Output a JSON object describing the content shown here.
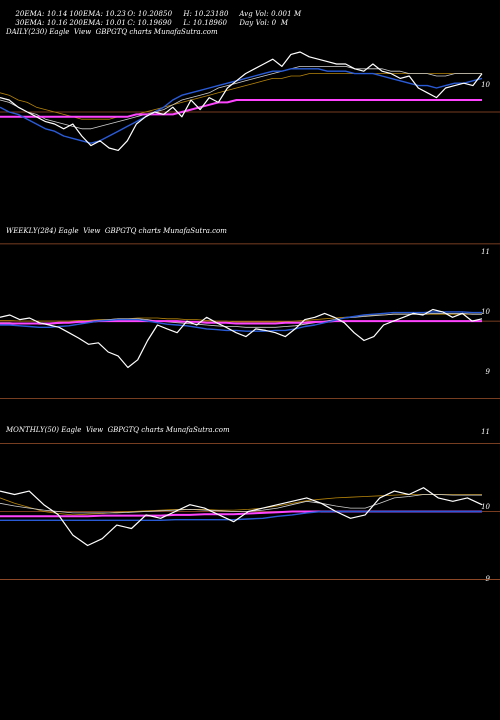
{
  "header": {
    "row1": [
      "20EMA: 10.14",
      "100EMA: 10.23",
      "O: 10.20850",
      "H: 10.23180",
      "Avg Vol: 0.001 M"
    ],
    "row2": [
      "30EMA: 10.16",
      "200EMA: 10.01",
      "C: 10.19690",
      "L: 10.18960",
      "Day Vol: 0  M"
    ]
  },
  "colors": {
    "background": "#000000",
    "price": "#ffffff",
    "ema_fast": "#2a5bd7",
    "ema_mid": "#cfcfcf",
    "ema_slow": "#b8860b",
    "ema_long": "#ff44ff",
    "grid": "#a0522d"
  },
  "chart_data": [
    {
      "type": "line",
      "title": "DAILY(230) Eagle  View  GBPGTQ charts MunafaSutra.com",
      "yticks": [
        "10"
      ],
      "series": [
        {
          "key": "price",
          "values": [
            10.06,
            10.05,
            10.02,
            10.0,
            9.98,
            9.96,
            9.95,
            9.93,
            9.95,
            9.9,
            9.86,
            9.88,
            9.85,
            9.84,
            9.88,
            9.95,
            9.98,
            10.0,
            9.99,
            10.02,
            9.98,
            10.05,
            10.01,
            10.06,
            10.04,
            10.1,
            10.13,
            10.16,
            10.18,
            10.2,
            10.22,
            10.19,
            10.24,
            10.25,
            10.23,
            10.22,
            10.21,
            10.2,
            10.2,
            10.18,
            10.17,
            10.2,
            10.17,
            10.16,
            10.14,
            10.15,
            10.1,
            10.08,
            10.06,
            10.1,
            10.11,
            10.12,
            10.11,
            10.16
          ]
        },
        {
          "key": "ema_fast",
          "values": [
            10.02,
            10.0,
            9.99,
            9.97,
            9.95,
            9.93,
            9.92,
            9.9,
            9.89,
            9.88,
            9.87,
            9.88,
            9.9,
            9.92,
            9.94,
            9.96,
            9.98,
            10.0,
            10.02,
            10.05,
            10.07,
            10.08,
            10.09,
            10.1,
            10.11,
            10.12,
            10.13,
            10.14,
            10.15,
            10.16,
            10.17,
            10.17,
            10.18,
            10.18,
            10.18,
            10.18,
            10.17,
            10.17,
            10.17,
            10.16,
            10.16,
            10.16,
            10.15,
            10.14,
            10.13,
            10.12,
            10.11,
            10.11,
            10.1,
            10.11,
            10.12,
            10.12,
            10.13,
            10.14
          ]
        },
        {
          "key": "ema_mid",
          "values": [
            10.05,
            10.04,
            10.02,
            10.0,
            9.99,
            9.97,
            9.96,
            9.95,
            9.94,
            9.93,
            9.93,
            9.94,
            9.95,
            9.96,
            9.97,
            9.98,
            9.99,
            10.0,
            10.01,
            10.03,
            10.05,
            10.06,
            10.07,
            10.08,
            10.1,
            10.11,
            10.12,
            10.13,
            10.14,
            10.15,
            10.16,
            10.17,
            10.18,
            10.19,
            10.19,
            10.19,
            10.19,
            10.19,
            10.19,
            10.18,
            10.18,
            10.18,
            10.18,
            10.17,
            10.17,
            10.16,
            10.16,
            10.16,
            10.15,
            10.15,
            10.16,
            10.16,
            10.16,
            10.16
          ]
        },
        {
          "key": "ema_slow",
          "values": [
            10.08,
            10.07,
            10.05,
            10.04,
            10.02,
            10.01,
            10.0,
            9.99,
            9.98,
            9.97,
            9.97,
            9.97,
            9.97,
            9.98,
            9.98,
            9.99,
            10.0,
            10.01,
            10.02,
            10.03,
            10.04,
            10.05,
            10.06,
            10.07,
            10.08,
            10.09,
            10.1,
            10.11,
            10.12,
            10.13,
            10.14,
            10.14,
            10.15,
            10.15,
            10.16,
            10.16,
            10.16,
            10.16,
            10.16,
            10.16,
            10.16,
            10.16,
            10.16,
            10.16,
            10.16,
            10.16,
            10.16,
            10.16,
            10.16,
            10.16,
            10.16,
            10.16,
            10.16,
            10.16
          ]
        },
        {
          "key": "ema_long",
          "values": [
            9.98,
            9.98,
            9.98,
            9.98,
            9.98,
            9.98,
            9.98,
            9.98,
            9.98,
            9.98,
            9.98,
            9.98,
            9.98,
            9.98,
            9.98,
            9.99,
            9.99,
            9.99,
            9.99,
            9.99,
            10.0,
            10.01,
            10.02,
            10.03,
            10.04,
            10.04,
            10.05,
            10.05,
            10.05,
            10.05,
            10.05,
            10.05,
            10.05,
            10.05,
            10.05,
            10.05,
            10.05,
            10.05,
            10.05,
            10.05,
            10.05,
            10.05,
            10.05,
            10.05,
            10.05,
            10.05,
            10.05,
            10.05,
            10.05,
            10.05,
            10.05,
            10.05,
            10.05,
            10.05
          ]
        }
      ]
    },
    {
      "type": "line",
      "title": "WEEKLY(284) Eagle  View  GBPGTQ charts MunafaSutra.com",
      "yticks": [
        "11",
        "10",
        "9"
      ],
      "series": [
        {
          "key": "price",
          "values": [
            10.05,
            10.08,
            10.02,
            10.04,
            9.98,
            9.95,
            9.92,
            9.85,
            9.78,
            9.7,
            9.72,
            9.6,
            9.55,
            9.4,
            9.5,
            9.75,
            9.95,
            9.9,
            9.85,
            10.0,
            9.95,
            10.05,
            9.98,
            9.92,
            9.85,
            9.8,
            9.9,
            9.88,
            9.85,
            9.8,
            9.9,
            10.02,
            10.05,
            10.1,
            10.05,
            9.98,
            9.85,
            9.75,
            9.8,
            9.95,
            10.0,
            10.05,
            10.1,
            10.08,
            10.15,
            10.12,
            10.05,
            10.1,
            10.0,
            10.03
          ]
        },
        {
          "key": "ema_fast",
          "values": [
            9.95,
            9.95,
            9.94,
            9.93,
            9.92,
            9.92,
            9.93,
            9.94,
            9.96,
            9.98,
            10.0,
            10.01,
            10.02,
            10.02,
            10.02,
            10.0,
            9.98,
            9.96,
            9.95,
            9.94,
            9.92,
            9.9,
            9.89,
            9.88,
            9.88,
            9.87,
            9.87,
            9.87,
            9.88,
            9.88,
            9.9,
            9.93,
            9.95,
            9.98,
            10.01,
            10.04,
            10.06,
            10.08,
            10.09,
            10.1,
            10.11,
            10.11,
            10.11,
            10.11,
            10.12,
            10.12,
            10.12,
            10.12,
            10.11,
            10.11
          ]
        },
        {
          "key": "ema_mid",
          "values": [
            9.98,
            9.98,
            9.97,
            9.97,
            9.96,
            9.96,
            9.97,
            9.98,
            9.99,
            10.0,
            10.01,
            10.02,
            10.03,
            10.03,
            10.03,
            10.02,
            10.0,
            9.99,
            9.98,
            9.97,
            9.96,
            9.95,
            9.94,
            9.93,
            9.93,
            9.92,
            9.92,
            9.92,
            9.92,
            9.93,
            9.94,
            9.96,
            9.98,
            10.0,
            10.02,
            10.04,
            10.05,
            10.06,
            10.07,
            10.08,
            10.09,
            10.09,
            10.09,
            10.09,
            10.1,
            10.1,
            10.1,
            10.1,
            10.09,
            10.09
          ]
        },
        {
          "key": "ema_slow",
          "values": [
            10.01,
            10.01,
            10.0,
            10.0,
            10.0,
            10.0,
            10.0,
            10.0,
            10.01,
            10.01,
            10.02,
            10.02,
            10.03,
            10.03,
            10.04,
            10.04,
            10.04,
            10.03,
            10.03,
            10.02,
            10.02,
            10.01,
            10.0,
            10.0,
            9.99,
            9.99,
            9.99,
            9.99,
            9.99,
            9.99,
            10.0,
            10.01,
            10.02,
            10.03,
            10.04,
            10.05,
            10.06,
            10.07,
            10.08,
            10.08,
            10.09,
            10.09,
            10.09,
            10.09,
            10.09,
            10.09,
            10.09,
            10.09,
            10.09,
            10.09
          ]
        },
        {
          "key": "ema_long",
          "values": [
            9.97,
            9.97,
            9.97,
            9.97,
            9.97,
            9.97,
            9.98,
            9.98,
            9.99,
            9.99,
            10.0,
            10.0,
            10.0,
            10.0,
            10.0,
            10.0,
            10.0,
            10.0,
            10.0,
            9.99,
            9.99,
            9.98,
            9.98,
            9.98,
            9.97,
            9.97,
            9.97,
            9.97,
            9.97,
            9.98,
            9.98,
            9.98,
            9.99,
            9.99,
            10.0,
            10.0,
            10.0,
            10.0,
            10.0,
            10.0,
            10.0,
            10.0,
            10.0,
            10.0,
            10.0,
            10.0,
            10.0,
            10.0,
            10.0,
            10.0
          ]
        }
      ]
    },
    {
      "type": "line",
      "title": "MONTHLY(50) Eagle  View  GBPGTQ charts MunafaSutra.com",
      "yticks": [
        "11",
        "10",
        "9"
      ],
      "series": [
        {
          "key": "price",
          "values": [
            10.3,
            10.25,
            10.3,
            10.1,
            9.95,
            9.65,
            9.5,
            9.6,
            9.8,
            9.75,
            9.95,
            9.9,
            10.0,
            10.1,
            10.05,
            9.95,
            9.85,
            10.0,
            10.05,
            10.1,
            10.15,
            10.2,
            10.12,
            10.0,
            9.9,
            9.95,
            10.2,
            10.3,
            10.25,
            10.35,
            10.2,
            10.15,
            10.2,
            10.1
          ]
        },
        {
          "key": "ema_fast",
          "values": [
            9.87,
            9.87,
            9.87,
            9.87,
            9.87,
            9.87,
            9.87,
            9.87,
            9.87,
            9.87,
            9.87,
            9.87,
            9.88,
            9.88,
            9.88,
            9.88,
            9.88,
            9.89,
            9.9,
            9.93,
            9.95,
            9.98,
            10.0,
            10.0,
            10.0,
            10.0,
            10.0,
            10.0,
            10.0,
            10.0,
            10.0,
            10.0,
            10.0,
            10.0
          ]
        },
        {
          "key": "ema_mid",
          "values": [
            10.12,
            10.08,
            10.05,
            10.02,
            10.0,
            9.98,
            9.98,
            9.98,
            9.98,
            9.99,
            10.0,
            10.01,
            10.02,
            10.03,
            10.02,
            10.01,
            10.0,
            10.0,
            10.02,
            10.05,
            10.1,
            10.15,
            10.12,
            10.08,
            10.05,
            10.05,
            10.12,
            10.2,
            10.22,
            10.25,
            10.25,
            10.24,
            10.24,
            10.24
          ]
        },
        {
          "key": "ema_slow",
          "values": [
            10.2,
            10.12,
            10.06,
            10.0,
            9.97,
            9.95,
            9.96,
            9.97,
            9.99,
            10.0,
            10.01,
            10.02,
            10.03,
            10.03,
            10.03,
            10.02,
            10.02,
            10.03,
            10.05,
            10.08,
            10.12,
            10.16,
            10.18,
            10.2,
            10.21,
            10.22,
            10.23,
            10.24,
            10.25,
            10.25,
            10.25,
            10.25,
            10.25,
            10.25
          ]
        },
        {
          "key": "ema_long",
          "values": [
            9.93,
            9.93,
            9.93,
            9.93,
            9.93,
            9.93,
            9.93,
            9.94,
            9.94,
            9.94,
            9.94,
            9.94,
            9.95,
            9.95,
            9.96,
            9.96,
            9.96,
            9.97,
            9.98,
            9.99,
            10.0,
            10.0,
            10.0,
            10.0,
            10.0,
            10.0,
            10.0,
            10.0,
            10.0,
            10.0,
            10.0,
            10.0,
            10.0,
            10.0
          ]
        }
      ]
    }
  ]
}
